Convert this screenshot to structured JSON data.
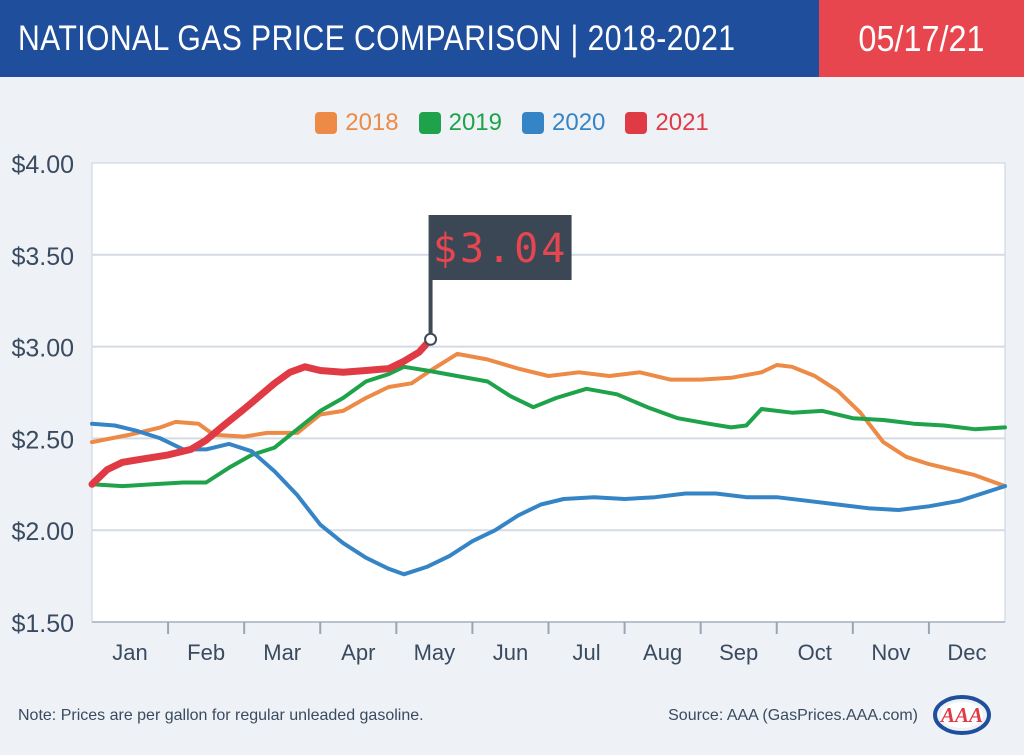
{
  "header": {
    "title": "NATIONAL GAS PRICE COMPARISON | 2018-2021",
    "date": "05/17/21"
  },
  "callout": {
    "label": "$3.04",
    "value": 3.04,
    "month_index": 4.45
  },
  "footer": {
    "note": "Note: Prices are per gallon for regular unleaded gasoline.",
    "source": "Source: AAA (GasPrices.AAA.com)",
    "logo_text": "AAA"
  },
  "colors": {
    "header_bg": "#1f4f9c",
    "date_bg": "#e8464e",
    "axis_text": "#3a4a5f",
    "gridline": "#d5dbe3"
  },
  "chart_data": {
    "type": "line",
    "title": "NATIONAL GAS PRICE COMPARISON | 2018-2021",
    "xlabel": "",
    "ylabel": "",
    "ylim": [
      1.5,
      4.0
    ],
    "xlim": [
      0,
      12
    ],
    "yticks": [
      1.5,
      2.0,
      2.5,
      3.0,
      3.5,
      4.0
    ],
    "ytick_labels": [
      "$1.50",
      "$2.00",
      "$2.50",
      "$3.00",
      "$3.50",
      "$4.00"
    ],
    "categories": [
      "Jan",
      "Feb",
      "Mar",
      "Apr",
      "May",
      "Jun",
      "Jul",
      "Aug",
      "Sep",
      "Oct",
      "Nov",
      "Dec"
    ],
    "grid": true,
    "legend_position": "top-center",
    "series": [
      {
        "name": "2018",
        "color": "#ec8a46",
        "x": [
          0,
          0.5,
          0.9,
          1.1,
          1.4,
          1.6,
          2.0,
          2.3,
          2.7,
          3.0,
          3.3,
          3.6,
          3.9,
          4.2,
          4.45,
          4.8,
          5.2,
          5.6,
          6.0,
          6.4,
          6.8,
          7.2,
          7.6,
          8.0,
          8.4,
          8.8,
          9.0,
          9.2,
          9.5,
          9.8,
          10.1,
          10.4,
          10.7,
          11.0,
          11.3,
          11.6,
          11.8,
          12.0
        ],
        "y": [
          2.48,
          2.52,
          2.56,
          2.59,
          2.58,
          2.52,
          2.51,
          2.53,
          2.53,
          2.63,
          2.65,
          2.72,
          2.78,
          2.8,
          2.87,
          2.96,
          2.93,
          2.88,
          2.84,
          2.86,
          2.84,
          2.86,
          2.82,
          2.82,
          2.83,
          2.86,
          2.9,
          2.89,
          2.84,
          2.76,
          2.64,
          2.48,
          2.4,
          2.36,
          2.33,
          2.3,
          2.27,
          2.24
        ]
      },
      {
        "name": "2019",
        "color": "#1fa34a",
        "x": [
          0,
          0.4,
          0.8,
          1.2,
          1.5,
          1.8,
          2.1,
          2.4,
          2.7,
          3.0,
          3.3,
          3.6,
          3.9,
          4.1,
          4.4,
          4.8,
          5.2,
          5.5,
          5.8,
          6.1,
          6.5,
          6.9,
          7.3,
          7.7,
          8.1,
          8.4,
          8.6,
          8.8,
          9.2,
          9.6,
          10.0,
          10.4,
          10.8,
          11.2,
          11.6,
          12.0
        ],
        "y": [
          2.25,
          2.24,
          2.25,
          2.26,
          2.26,
          2.34,
          2.41,
          2.45,
          2.55,
          2.65,
          2.72,
          2.81,
          2.85,
          2.89,
          2.87,
          2.84,
          2.81,
          2.73,
          2.67,
          2.72,
          2.77,
          2.74,
          2.67,
          2.61,
          2.58,
          2.56,
          2.57,
          2.66,
          2.64,
          2.65,
          2.61,
          2.6,
          2.58,
          2.57,
          2.55,
          2.56
        ]
      },
      {
        "name": "2020",
        "color": "#3585c6",
        "x": [
          0,
          0.3,
          0.6,
          0.9,
          1.2,
          1.5,
          1.8,
          2.1,
          2.4,
          2.7,
          3.0,
          3.3,
          3.6,
          3.9,
          4.1,
          4.4,
          4.7,
          5.0,
          5.3,
          5.6,
          5.9,
          6.2,
          6.6,
          7.0,
          7.4,
          7.8,
          8.2,
          8.6,
          9.0,
          9.4,
          9.8,
          10.2,
          10.6,
          11.0,
          11.4,
          11.7,
          12.0
        ],
        "y": [
          2.58,
          2.57,
          2.54,
          2.5,
          2.44,
          2.44,
          2.47,
          2.43,
          2.32,
          2.19,
          2.03,
          1.93,
          1.85,
          1.79,
          1.76,
          1.8,
          1.86,
          1.94,
          2.0,
          2.08,
          2.14,
          2.17,
          2.18,
          2.17,
          2.18,
          2.2,
          2.2,
          2.18,
          2.18,
          2.16,
          2.14,
          2.12,
          2.11,
          2.13,
          2.16,
          2.2,
          2.24
        ]
      },
      {
        "name": "2021",
        "color": "#e03a45",
        "x": [
          0,
          0.2,
          0.4,
          0.7,
          1.0,
          1.3,
          1.5,
          1.7,
          2.0,
          2.2,
          2.4,
          2.6,
          2.8,
          3.0,
          3.3,
          3.6,
          3.9,
          4.1,
          4.3,
          4.45
        ],
        "y": [
          2.25,
          2.33,
          2.37,
          2.39,
          2.41,
          2.44,
          2.49,
          2.56,
          2.66,
          2.73,
          2.8,
          2.86,
          2.89,
          2.87,
          2.86,
          2.87,
          2.88,
          2.92,
          2.97,
          3.04
        ]
      }
    ]
  }
}
